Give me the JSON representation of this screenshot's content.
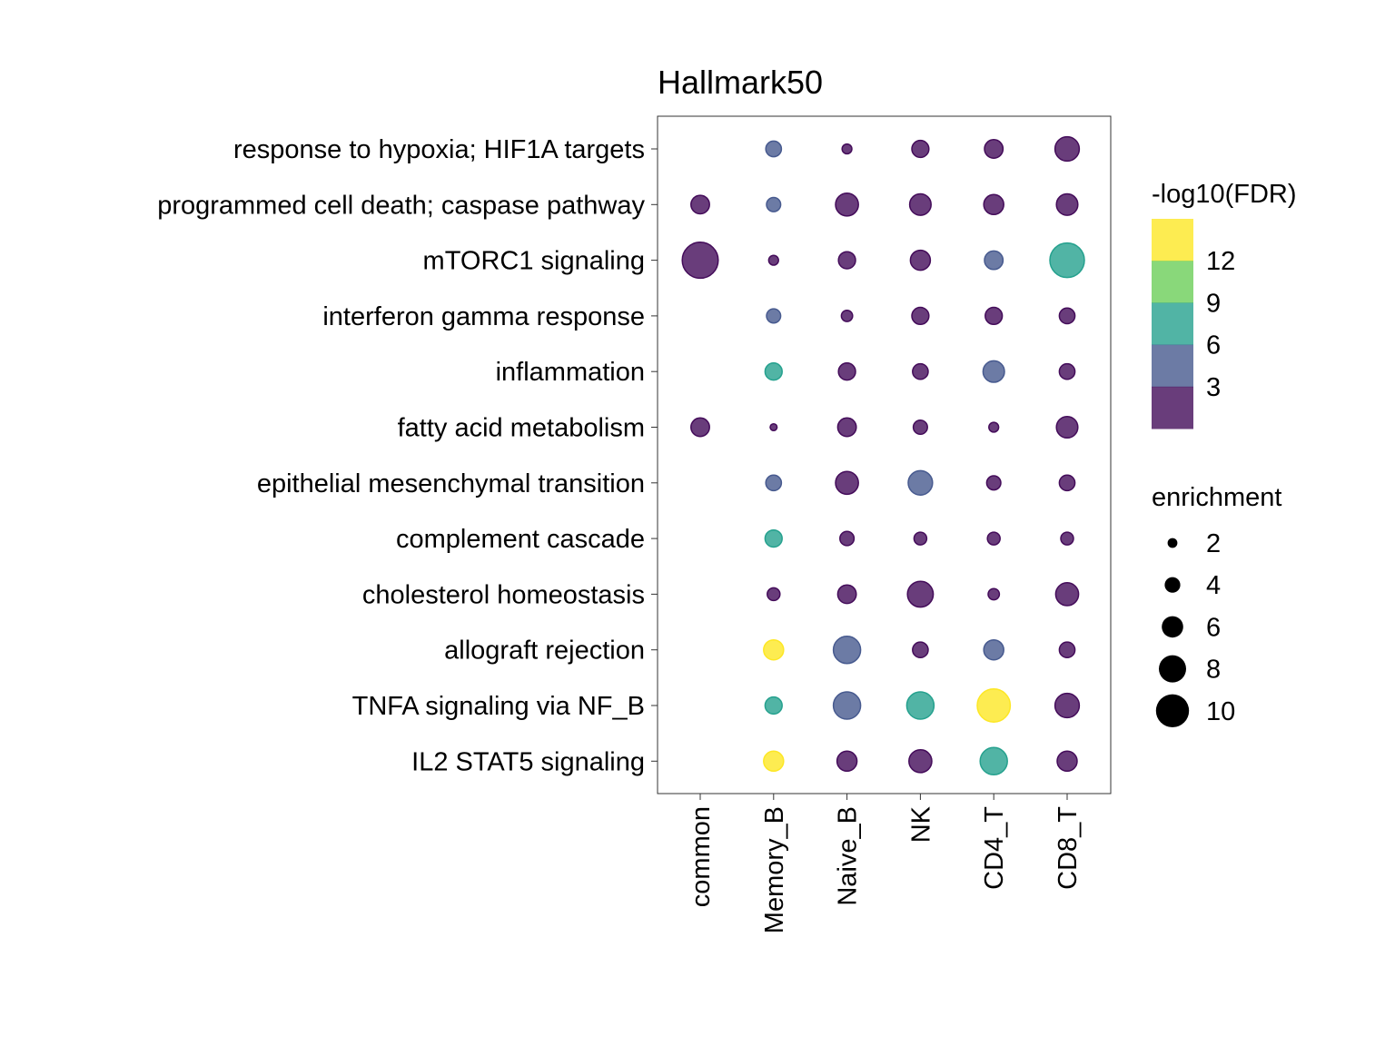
{
  "chart_data": {
    "type": "dot",
    "title": "Hallmark50",
    "xlabel": "",
    "ylabel": "",
    "x_categories": [
      "common",
      "Memory_B",
      "Naive_B",
      "NK",
      "CD4_T",
      "CD8_T"
    ],
    "y_categories": [
      "response to hypoxia; HIF1A targets",
      "programmed cell death; caspase pathway",
      "mTORC1 signaling",
      "interferon gamma response",
      "inflammation",
      "fatty acid metabolism",
      "epithelial mesenchymal transition",
      "complement cascade",
      "cholesterol homeostasis",
      "allograft rejection",
      "TNFA signaling via NF_B",
      "IL2 STAT5 signaling"
    ],
    "points": [
      {
        "x": "Memory_B",
        "y": "response to hypoxia; HIF1A targets",
        "enrichment": 4.0,
        "neg_log10_fdr": 4.5
      },
      {
        "x": "Naive_B",
        "y": "response to hypoxia; HIF1A targets",
        "enrichment": 2.0,
        "neg_log10_fdr": 1.5
      },
      {
        "x": "NK",
        "y": "response to hypoxia; HIF1A targets",
        "enrichment": 4.5,
        "neg_log10_fdr": 1.5
      },
      {
        "x": "CD4_T",
        "y": "response to hypoxia; HIF1A targets",
        "enrichment": 5.0,
        "neg_log10_fdr": 1.5
      },
      {
        "x": "CD8_T",
        "y": "response to hypoxia; HIF1A targets",
        "enrichment": 7.0,
        "neg_log10_fdr": 1.5
      },
      {
        "x": "common",
        "y": "programmed cell death; caspase pathway",
        "enrichment": 5.0,
        "neg_log10_fdr": 1.5
      },
      {
        "x": "Memory_B",
        "y": "programmed cell death; caspase pathway",
        "enrichment": 3.5,
        "neg_log10_fdr": 4.5
      },
      {
        "x": "Naive_B",
        "y": "programmed cell death; caspase pathway",
        "enrichment": 6.5,
        "neg_log10_fdr": 1.5
      },
      {
        "x": "NK",
        "y": "programmed cell death; caspase pathway",
        "enrichment": 6.0,
        "neg_log10_fdr": 1.5
      },
      {
        "x": "CD4_T",
        "y": "programmed cell death; caspase pathway",
        "enrichment": 5.5,
        "neg_log10_fdr": 1.5
      },
      {
        "x": "CD8_T",
        "y": "programmed cell death; caspase pathway",
        "enrichment": 6.0,
        "neg_log10_fdr": 1.5
      },
      {
        "x": "common",
        "y": "mTORC1 signaling",
        "enrichment": 11.0,
        "neg_log10_fdr": 1.5
      },
      {
        "x": "Memory_B",
        "y": "mTORC1 signaling",
        "enrichment": 2.0,
        "neg_log10_fdr": 1.5
      },
      {
        "x": "Naive_B",
        "y": "mTORC1 signaling",
        "enrichment": 4.5,
        "neg_log10_fdr": 1.5
      },
      {
        "x": "NK",
        "y": "mTORC1 signaling",
        "enrichment": 5.5,
        "neg_log10_fdr": 1.5
      },
      {
        "x": "CD4_T",
        "y": "mTORC1 signaling",
        "enrichment": 5.0,
        "neg_log10_fdr": 4.5
      },
      {
        "x": "CD8_T",
        "y": "mTORC1 signaling",
        "enrichment": 10.5,
        "neg_log10_fdr": 7.5
      },
      {
        "x": "Memory_B",
        "y": "interferon gamma response",
        "enrichment": 3.5,
        "neg_log10_fdr": 4.5
      },
      {
        "x": "Naive_B",
        "y": "interferon gamma response",
        "enrichment": 2.5,
        "neg_log10_fdr": 1.5
      },
      {
        "x": "NK",
        "y": "interferon gamma response",
        "enrichment": 4.5,
        "neg_log10_fdr": 1.5
      },
      {
        "x": "CD4_T",
        "y": "interferon gamma response",
        "enrichment": 4.5,
        "neg_log10_fdr": 1.5
      },
      {
        "x": "CD8_T",
        "y": "interferon gamma response",
        "enrichment": 4.0,
        "neg_log10_fdr": 1.5
      },
      {
        "x": "Memory_B",
        "y": "inflammation",
        "enrichment": 4.5,
        "neg_log10_fdr": 7.5
      },
      {
        "x": "Naive_B",
        "y": "inflammation",
        "enrichment": 4.5,
        "neg_log10_fdr": 1.5
      },
      {
        "x": "NK",
        "y": "inflammation",
        "enrichment": 4.0,
        "neg_log10_fdr": 1.5
      },
      {
        "x": "CD4_T",
        "y": "inflammation",
        "enrichment": 6.0,
        "neg_log10_fdr": 4.5
      },
      {
        "x": "CD8_T",
        "y": "inflammation",
        "enrichment": 4.0,
        "neg_log10_fdr": 1.5
      },
      {
        "x": "common",
        "y": "fatty acid metabolism",
        "enrichment": 5.0,
        "neg_log10_fdr": 1.5
      },
      {
        "x": "Memory_B",
        "y": "fatty acid metabolism",
        "enrichment": 1.0,
        "neg_log10_fdr": 1.5
      },
      {
        "x": "Naive_B",
        "y": "fatty acid metabolism",
        "enrichment": 5.0,
        "neg_log10_fdr": 1.5
      },
      {
        "x": "NK",
        "y": "fatty acid metabolism",
        "enrichment": 3.5,
        "neg_log10_fdr": 1.5
      },
      {
        "x": "CD4_T",
        "y": "fatty acid metabolism",
        "enrichment": 2.0,
        "neg_log10_fdr": 1.5
      },
      {
        "x": "CD8_T",
        "y": "fatty acid metabolism",
        "enrichment": 6.0,
        "neg_log10_fdr": 1.5
      },
      {
        "x": "Memory_B",
        "y": "epithelial mesenchymal transition",
        "enrichment": 4.0,
        "neg_log10_fdr": 4.5
      },
      {
        "x": "Naive_B",
        "y": "epithelial mesenchymal transition",
        "enrichment": 6.5,
        "neg_log10_fdr": 1.5
      },
      {
        "x": "NK",
        "y": "epithelial mesenchymal transition",
        "enrichment": 7.0,
        "neg_log10_fdr": 4.5
      },
      {
        "x": "CD4_T",
        "y": "epithelial mesenchymal transition",
        "enrichment": 3.5,
        "neg_log10_fdr": 1.5
      },
      {
        "x": "CD8_T",
        "y": "epithelial mesenchymal transition",
        "enrichment": 4.0,
        "neg_log10_fdr": 1.5
      },
      {
        "x": "Memory_B",
        "y": "complement cascade",
        "enrichment": 4.5,
        "neg_log10_fdr": 7.5
      },
      {
        "x": "Naive_B",
        "y": "complement cascade",
        "enrichment": 3.5,
        "neg_log10_fdr": 1.5
      },
      {
        "x": "NK",
        "y": "complement cascade",
        "enrichment": 3.0,
        "neg_log10_fdr": 1.5
      },
      {
        "x": "CD4_T",
        "y": "complement cascade",
        "enrichment": 3.0,
        "neg_log10_fdr": 1.5
      },
      {
        "x": "CD8_T",
        "y": "complement cascade",
        "enrichment": 3.0,
        "neg_log10_fdr": 1.5
      },
      {
        "x": "Memory_B",
        "y": "cholesterol homeostasis",
        "enrichment": 3.0,
        "neg_log10_fdr": 1.5
      },
      {
        "x": "Naive_B",
        "y": "cholesterol homeostasis",
        "enrichment": 5.0,
        "neg_log10_fdr": 1.5
      },
      {
        "x": "NK",
        "y": "cholesterol homeostasis",
        "enrichment": 7.5,
        "neg_log10_fdr": 1.5
      },
      {
        "x": "CD4_T",
        "y": "cholesterol homeostasis",
        "enrichment": 2.5,
        "neg_log10_fdr": 1.5
      },
      {
        "x": "CD8_T",
        "y": "cholesterol homeostasis",
        "enrichment": 6.5,
        "neg_log10_fdr": 1.5
      },
      {
        "x": "Memory_B",
        "y": "allograft rejection",
        "enrichment": 5.5,
        "neg_log10_fdr": 13.5
      },
      {
        "x": "Naive_B",
        "y": "allograft rejection",
        "enrichment": 8.0,
        "neg_log10_fdr": 4.5
      },
      {
        "x": "NK",
        "y": "allograft rejection",
        "enrichment": 4.0,
        "neg_log10_fdr": 1.5
      },
      {
        "x": "CD4_T",
        "y": "allograft rejection",
        "enrichment": 5.5,
        "neg_log10_fdr": 4.5
      },
      {
        "x": "CD8_T",
        "y": "allograft rejection",
        "enrichment": 4.0,
        "neg_log10_fdr": 1.5
      },
      {
        "x": "Memory_B",
        "y": "TNFA signaling via NF_B",
        "enrichment": 4.5,
        "neg_log10_fdr": 7.5
      },
      {
        "x": "Naive_B",
        "y": "TNFA signaling via NF_B",
        "enrichment": 8.0,
        "neg_log10_fdr": 4.5
      },
      {
        "x": "NK",
        "y": "TNFA signaling via NF_B",
        "enrichment": 8.0,
        "neg_log10_fdr": 7.5
      },
      {
        "x": "CD4_T",
        "y": "TNFA signaling via NF_B",
        "enrichment": 10.0,
        "neg_log10_fdr": 13.5
      },
      {
        "x": "CD8_T",
        "y": "TNFA signaling via NF_B",
        "enrichment": 7.0,
        "neg_log10_fdr": 1.5
      },
      {
        "x": "Memory_B",
        "y": "IL2 STAT5 signaling",
        "enrichment": 5.5,
        "neg_log10_fdr": 13.5
      },
      {
        "x": "Naive_B",
        "y": "IL2 STAT5 signaling",
        "enrichment": 5.5,
        "neg_log10_fdr": 1.5
      },
      {
        "x": "NK",
        "y": "IL2 STAT5 signaling",
        "enrichment": 6.5,
        "neg_log10_fdr": 1.5
      },
      {
        "x": "CD4_T",
        "y": "IL2 STAT5 signaling",
        "enrichment": 8.0,
        "neg_log10_fdr": 7.5
      },
      {
        "x": "CD8_T",
        "y": "IL2 STAT5 signaling",
        "enrichment": 5.5,
        "neg_log10_fdr": 1.5
      }
    ],
    "color_legend": {
      "title": "-log10(FDR)",
      "type": "binned",
      "breaks": [
        12,
        9,
        6,
        3
      ],
      "bins": [
        {
          "range": [
            12,
            15
          ],
          "color": "#FDE725"
        },
        {
          "range": [
            9,
            12
          ],
          "color": "#6CCE59"
        },
        {
          "range": [
            6,
            9
          ],
          "color": "#25A18E"
        },
        {
          "range": [
            3,
            6
          ],
          "color": "#475A8F"
        },
        {
          "range": [
            0,
            3
          ],
          "color": "#440C5A"
        }
      ]
    },
    "size_legend": {
      "title": "enrichment",
      "values": [
        2,
        4,
        6,
        8,
        10
      ]
    },
    "point_opacity": 0.8,
    "grid": false,
    "legend_position": "right"
  }
}
